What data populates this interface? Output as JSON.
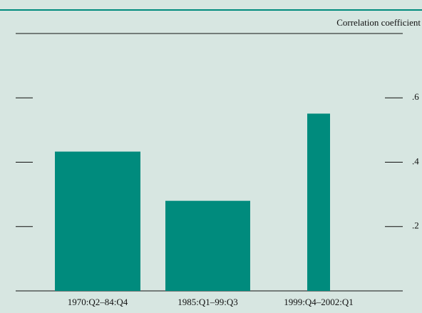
{
  "chart_data": {
    "type": "bar",
    "y_axis_label": "Correlation coefficient",
    "categories": [
      "1970:Q2–84:Q4",
      "1985:Q1–99:Q3",
      "1999:Q4–2002:Q1"
    ],
    "values": [
      0.433,
      0.28,
      0.551
    ],
    "color": "#008b7d",
    "ylim": [
      0,
      0.8
    ],
    "yticks": [
      {
        "value": 0.2,
        "label": ".2"
      },
      {
        "value": 0.4,
        "label": ".4"
      },
      {
        "value": 0.6,
        "label": ".6"
      }
    ]
  }
}
